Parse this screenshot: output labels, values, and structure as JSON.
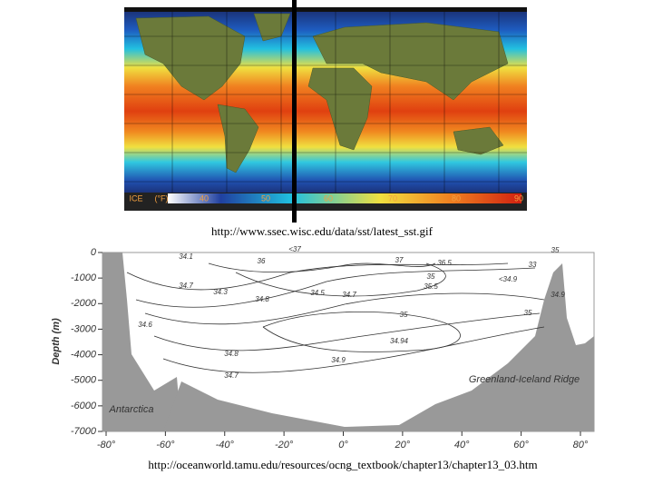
{
  "map": {
    "colorbar_labels": [
      "ICE",
      "(°F)",
      "40",
      "50",
      "60",
      "70",
      "80",
      "90"
    ]
  },
  "captions": [
    "http://www.ssec.wisc.edu/data/sst/latest_sst.gif",
    "http://oceanworld.tamu.edu/resources/ocng_textbook/chapter13/chapter13_03.htm"
  ],
  "section": {
    "ylabel": "Depth (m)",
    "ylim": [
      -7000,
      0
    ],
    "yticks": [
      0,
      -1000,
      -2000,
      -3000,
      -4000,
      -5000,
      -6000,
      -7000
    ],
    "xlim": [
      -80,
      80
    ],
    "xticks": [
      {
        "value": -80,
        "label": "-80°"
      },
      {
        "value": -60,
        "label": "-60°"
      },
      {
        "value": -40,
        "label": "-40°"
      },
      {
        "value": -20,
        "label": "-20°"
      },
      {
        "value": 0,
        "label": "0°"
      },
      {
        "value": 20,
        "label": "20°"
      },
      {
        "value": 40,
        "label": "40°"
      },
      {
        "value": 60,
        "label": "60°"
      },
      {
        "value": 80,
        "label": "80°"
      }
    ],
    "places": [
      "Antarctica",
      "Greenland-Iceland Ridge"
    ],
    "contour_labels": [
      "<37",
      "36",
      "37",
      "36.5",
      "35",
      "35.5",
      "34.1",
      "34.7",
      "34.3",
      "34.8",
      "34.5",
      "34.7",
      "35",
      "34.6",
      "34.8",
      "34.94",
      "34.9",
      "34.7",
      "35",
      "33",
      "<34.9",
      "34.9",
      "35"
    ]
  }
}
